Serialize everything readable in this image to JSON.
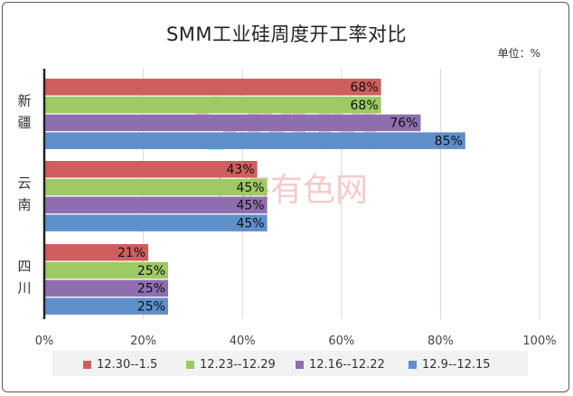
{
  "title": "SMM工业硅周度开工率对比",
  "unit_label": "单位：%",
  "watermark": "SMM 上海有色网",
  "colors": [
    "#cf5f5f",
    "#9ec964",
    "#8f6eb0",
    "#5f8fca"
  ],
  "chart_data": {
    "type": "bar",
    "orientation": "horizontal",
    "categories": [
      "新疆",
      "云南",
      "四川"
    ],
    "series": [
      {
        "name": "12.30--1.5",
        "values": [
          68,
          43,
          21
        ],
        "labels": [
          "68%",
          "43%",
          "21%"
        ]
      },
      {
        "name": "12.23--12.29",
        "values": [
          68,
          45,
          25
        ],
        "labels": [
          "68%",
          "45%",
          "25%"
        ]
      },
      {
        "name": "12.16--12.22",
        "values": [
          76,
          45,
          25
        ],
        "labels": [
          "76%",
          "45%",
          "25%"
        ]
      },
      {
        "name": "12.9--12.15",
        "values": [
          85,
          45,
          25
        ],
        "labels": [
          "85%",
          "45%",
          "25%"
        ]
      }
    ],
    "xlim": [
      0,
      100
    ],
    "xticks": [
      0,
      20,
      40,
      60,
      80,
      100
    ],
    "xtick_labels": [
      "0%",
      "20%",
      "40%",
      "60%",
      "80%",
      "100%"
    ],
    "grid": true,
    "legend_position": "bottom"
  }
}
